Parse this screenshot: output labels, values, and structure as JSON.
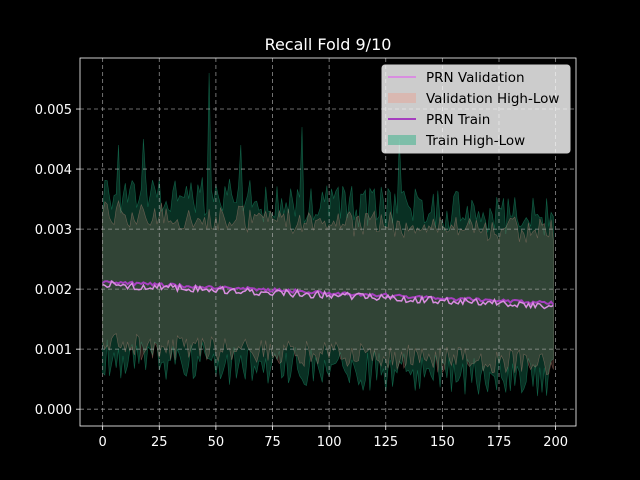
{
  "chart_data": {
    "type": "line",
    "title": "Recall Fold 9/10",
    "xlabel": "",
    "ylabel": "",
    "xlim": [
      -10,
      209
    ],
    "ylim": [
      -0.00028,
      0.00585
    ],
    "xticks": [
      0,
      25,
      50,
      75,
      100,
      125,
      150,
      175,
      200
    ],
    "xtick_labels": [
      "0",
      "25",
      "50",
      "75",
      "100",
      "125",
      "150",
      "175",
      "200"
    ],
    "yticks": [
      0.0,
      0.001,
      0.002,
      0.003,
      0.004,
      0.005
    ],
    "ytick_labels": [
      "0.000",
      "0.001",
      "0.002",
      "0.003",
      "0.004",
      "0.005"
    ],
    "grid": true,
    "legend_position": "top-right",
    "colors": {
      "background": "#000000",
      "validation_line": "#d98ee0",
      "validation_band": "#e8a090",
      "train_line": "#a63fbf",
      "train_band": "#1fae7f",
      "grid": "#b0b0b0"
    },
    "series": [
      {
        "name": "PRN Validation",
        "kind": "line",
        "x_range": [
          0,
          199
        ],
        "trend": {
          "start": 0.00208,
          "end": 0.00172
        },
        "noise": 6e-05
      },
      {
        "name": "Validation High-Low",
        "kind": "band",
        "x_range": [
          0,
          199
        ],
        "upper": {
          "start": 0.0032,
          "end": 0.0029
        },
        "lower": {
          "start": 0.0011,
          "end": 0.0008
        },
        "noise": 0.00022
      },
      {
        "name": "PRN Train",
        "kind": "line",
        "x_range": [
          0,
          199
        ],
        "trend": {
          "start": 0.00212,
          "end": 0.00176
        },
        "noise": 3e-05
      },
      {
        "name": "Train High-Low",
        "kind": "band",
        "x_range": [
          0,
          199
        ],
        "upper": {
          "start": 0.0035,
          "end": 0.0031
        },
        "lower": {
          "start": 0.0009,
          "end": 0.0006
        },
        "noise": 0.00035,
        "peaks": [
          {
            "x": 47,
            "y": 0.0056
          },
          {
            "x": 88,
            "y": 0.0047
          },
          {
            "x": 131,
            "y": 0.0045
          },
          {
            "x": 18,
            "y": 0.0045
          },
          {
            "x": 61,
            "y": 0.0044
          },
          {
            "x": 7,
            "y": 0.0044
          }
        ]
      }
    ]
  }
}
